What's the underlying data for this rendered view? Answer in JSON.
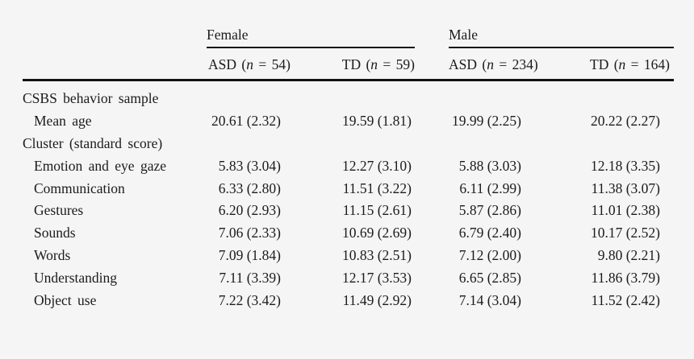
{
  "table": {
    "groups": [
      {
        "label": "Female",
        "cols": [
          {
            "pre": "ASD (",
            "n": "n",
            "post": " = 54)"
          },
          {
            "pre": "TD (",
            "n": "n",
            "post": " = 59)"
          }
        ]
      },
      {
        "label": "Male",
        "cols": [
          {
            "pre": "ASD (",
            "n": "n",
            "post": " = 234)"
          },
          {
            "pre": "TD (",
            "n": "n",
            "post": " = 164)"
          }
        ]
      }
    ],
    "rows": [
      {
        "label": "CSBS behavior sample",
        "values": [
          "",
          "",
          "",
          ""
        ]
      },
      {
        "label": "Mean age",
        "values": [
          "20.61 (2.32)",
          "19.59 (1.81)",
          "19.99 (2.25)",
          "20.22 (2.27)"
        ]
      },
      {
        "label": "Cluster (standard score)",
        "values": [
          "",
          "",
          "",
          ""
        ]
      },
      {
        "label": "Emotion and eye gaze",
        "values": [
          "5.83 (3.04)",
          "12.27 (3.10)",
          "5.88 (3.03)",
          "12.18 (3.35)"
        ]
      },
      {
        "label": "Communication",
        "values": [
          "6.33 (2.80)",
          "11.51 (3.22)",
          "6.11 (2.99)",
          "11.38 (3.07)"
        ]
      },
      {
        "label": "Gestures",
        "values": [
          "6.20 (2.93)",
          "11.15 (2.61)",
          "5.87 (2.86)",
          "11.01 (2.38)"
        ]
      },
      {
        "label": "Sounds",
        "values": [
          "7.06 (2.33)",
          "10.69 (2.69)",
          "6.79 (2.40)",
          "10.17 (2.52)"
        ]
      },
      {
        "label": "Words",
        "values": [
          "7.09 (1.84)",
          "10.83 (2.51)",
          "7.12 (2.00)",
          "9.80 (2.21)"
        ]
      },
      {
        "label": "Understanding",
        "values": [
          "7.11 (3.39)",
          "12.17 (3.53)",
          "6.65 (2.85)",
          "11.86 (3.79)"
        ]
      },
      {
        "label": "Object use",
        "values": [
          "7.22 (3.42)",
          "11.49 (2.92)",
          "7.14 (3.04)",
          "11.52 (2.42)"
        ]
      }
    ],
    "colors": {
      "background": "#f5f5f6",
      "text": "#1b1b1b",
      "rule": "#161616"
    }
  }
}
